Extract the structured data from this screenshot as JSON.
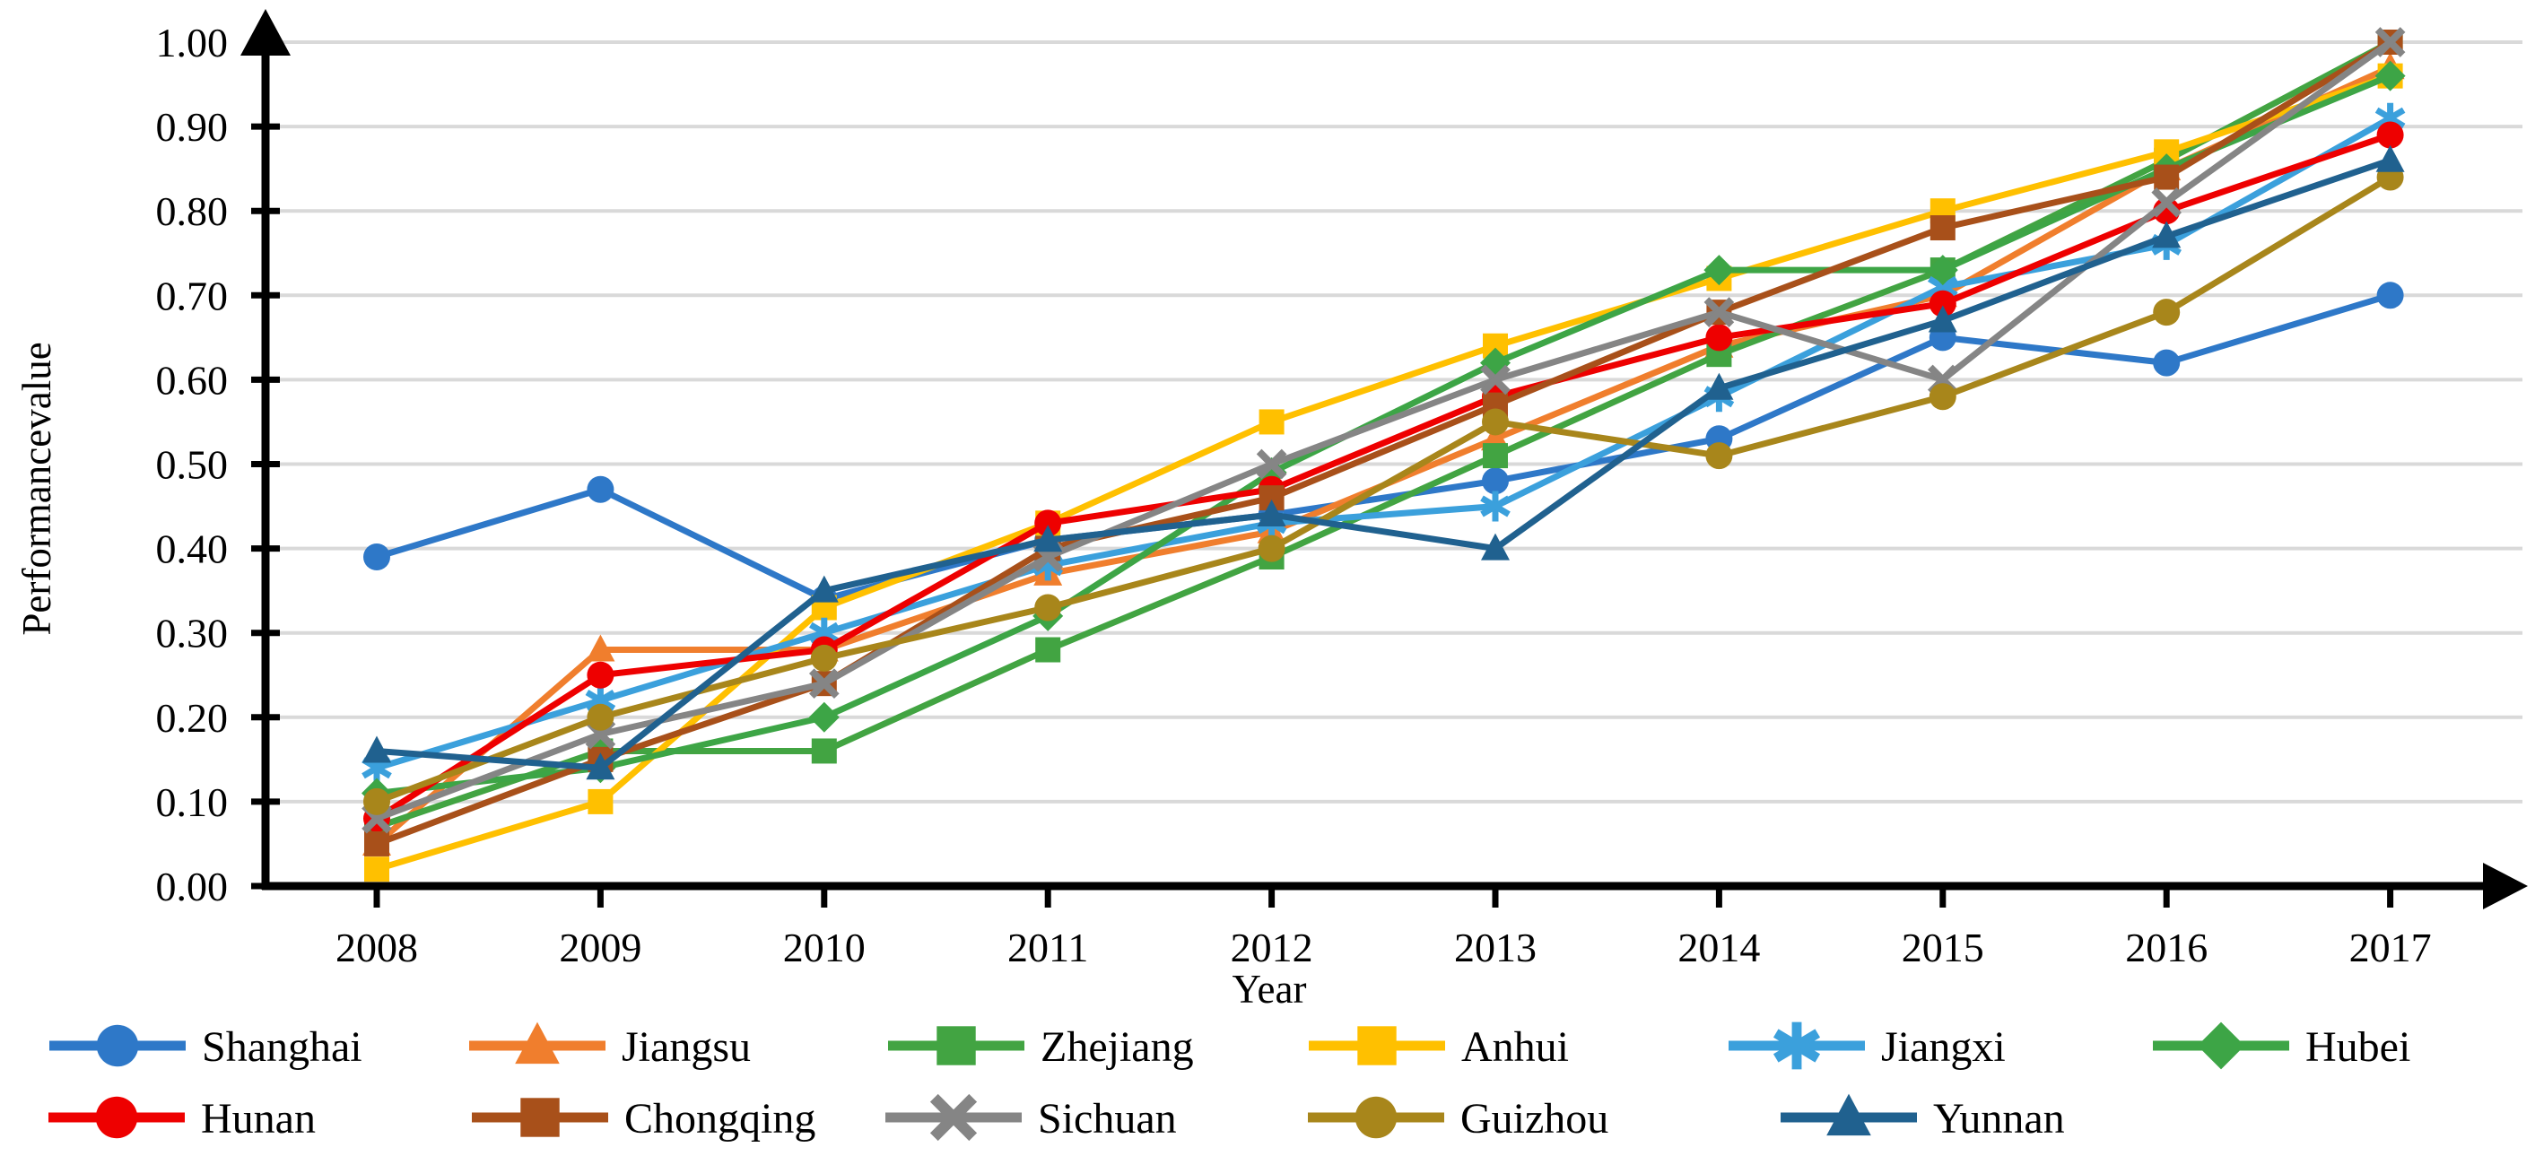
{
  "figure": {
    "description": "Line chart of provincial performance values 2008-2017",
    "x_axis_title": "Year",
    "y_axis_title": "Performancevalue"
  },
  "chart_data": {
    "type": "line",
    "x": [
      2008,
      2009,
      2010,
      2011,
      2012,
      2013,
      2014,
      2015,
      2016,
      2017
    ],
    "xlabel": "Year",
    "ylabel": "Performancevalue",
    "ylim": [
      0.0,
      1.0
    ],
    "y_tick_step": 0.1,
    "y_tick_labels": [
      "0.00",
      "0.10",
      "0.20",
      "0.30",
      "0.40",
      "0.50",
      "0.60",
      "0.70",
      "0.80",
      "0.90",
      "1.00"
    ],
    "grid": "horizontal light gray lines",
    "legend_position": "bottom, two rows",
    "axis_color": "#000000",
    "gridline_color": "#d9d9d9",
    "series": [
      {
        "name": "Shanghai",
        "color": "#2e78c8",
        "marker": "circle",
        "values": [
          0.39,
          0.47,
          0.34,
          0.41,
          0.44,
          0.48,
          0.53,
          0.65,
          0.62,
          0.7
        ]
      },
      {
        "name": "Jiangsu",
        "color": "#f07e2d",
        "marker": "triangle",
        "values": [
          0.05,
          0.28,
          0.28,
          0.37,
          0.42,
          0.53,
          0.64,
          0.7,
          0.85,
          0.97
        ]
      },
      {
        "name": "Zhejiang",
        "color": "#42a442",
        "marker": "square",
        "values": [
          0.07,
          0.16,
          0.16,
          0.28,
          0.39,
          0.51,
          0.63,
          0.73,
          0.86,
          1.0
        ]
      },
      {
        "name": "Anhui",
        "color": "#ffc000",
        "marker": "square",
        "values": [
          0.02,
          0.1,
          0.33,
          0.43,
          0.55,
          0.64,
          0.72,
          0.8,
          0.87,
          0.96
        ]
      },
      {
        "name": "Jiangxi",
        "color": "#3ba0dc",
        "marker": "asterisk",
        "values": [
          0.14,
          0.22,
          0.3,
          0.38,
          0.43,
          0.45,
          0.58,
          0.71,
          0.76,
          0.91
        ]
      },
      {
        "name": "Hubei",
        "color": "#3da546",
        "marker": "diamond",
        "values": [
          0.11,
          0.14,
          0.2,
          0.32,
          0.49,
          0.62,
          0.73,
          0.73,
          0.85,
          0.96
        ]
      },
      {
        "name": "Hunan",
        "color": "#ee0000",
        "marker": "circle",
        "values": [
          0.08,
          0.25,
          0.28,
          0.43,
          0.47,
          0.58,
          0.65,
          0.69,
          0.8,
          0.89
        ]
      },
      {
        "name": "Chongqing",
        "color": "#a8501a",
        "marker": "square",
        "values": [
          0.05,
          0.15,
          0.24,
          0.4,
          0.46,
          0.57,
          0.68,
          0.78,
          0.84,
          1.0
        ]
      },
      {
        "name": "Sichuan",
        "color": "#858585",
        "marker": "x",
        "values": [
          0.08,
          0.18,
          0.24,
          0.39,
          0.5,
          0.6,
          0.68,
          0.6,
          0.81,
          1.0
        ]
      },
      {
        "name": "Guizhou",
        "color": "#a8861b",
        "marker": "circle",
        "values": [
          0.1,
          0.2,
          0.27,
          0.33,
          0.4,
          0.55,
          0.51,
          0.58,
          0.68,
          0.84
        ]
      },
      {
        "name": "Yunnan",
        "color": "#20618f",
        "marker": "triangle",
        "values": [
          0.16,
          0.14,
          0.35,
          0.41,
          0.44,
          0.4,
          0.59,
          0.67,
          0.77,
          0.86
        ]
      }
    ]
  }
}
